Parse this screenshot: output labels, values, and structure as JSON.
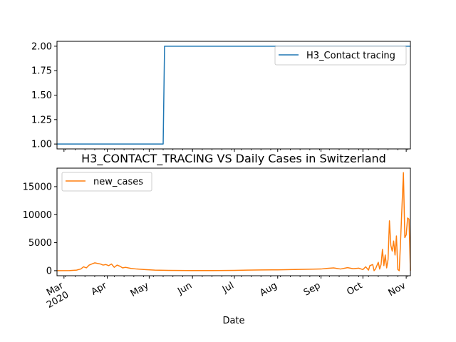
{
  "chart_data": [
    {
      "type": "line",
      "title": "",
      "xlabel": "",
      "ylabel": "",
      "ylim": [
        0.95,
        2.05
      ],
      "yticks": [
        "1.00",
        "1.25",
        "1.50",
        "1.75",
        "2.00"
      ],
      "legend_placement": "top-right",
      "grid": false,
      "series": [
        {
          "name": "H3_Contact tracing",
          "color": "#1f77b4",
          "x": [
            "2020-02-25",
            "2020-05-11",
            "2020-05-12",
            "2020-11-04"
          ],
          "values": [
            1,
            1,
            2,
            2
          ]
        }
      ]
    },
    {
      "type": "line",
      "title": "H3_CONTACT_TRACING VS Daily Cases in Switzerland",
      "xlabel": "Date",
      "ylabel": "",
      "ylim": [
        -900,
        18300
      ],
      "yticks": [
        "0",
        "5000",
        "10000",
        "15000"
      ],
      "legend_placement": "top-left",
      "grid": false,
      "xtick_labels": [
        {
          "date": "2020-03-01",
          "label": "Mar",
          "sublabel": "2020"
        },
        {
          "date": "2020-04-01",
          "label": "Apr"
        },
        {
          "date": "2020-05-01",
          "label": "May"
        },
        {
          "date": "2020-06-01",
          "label": "Jun"
        },
        {
          "date": "2020-07-01",
          "label": "Jul"
        },
        {
          "date": "2020-08-01",
          "label": "Aug"
        },
        {
          "date": "2020-09-01",
          "label": "Sep"
        },
        {
          "date": "2020-10-01",
          "label": "Oct"
        },
        {
          "date": "2020-11-01",
          "label": "Nov"
        }
      ],
      "series": [
        {
          "name": "new_cases",
          "color": "#ff7f0e",
          "x": [
            "2020-02-25",
            "2020-03-05",
            "2020-03-10",
            "2020-03-13",
            "2020-03-15",
            "2020-03-17",
            "2020-03-19",
            "2020-03-21",
            "2020-03-23",
            "2020-03-25",
            "2020-03-27",
            "2020-03-29",
            "2020-03-31",
            "2020-04-02",
            "2020-04-04",
            "2020-04-06",
            "2020-04-08",
            "2020-04-10",
            "2020-04-12",
            "2020-04-14",
            "2020-04-18",
            "2020-04-22",
            "2020-04-28",
            "2020-05-05",
            "2020-05-15",
            "2020-06-01",
            "2020-06-15",
            "2020-07-01",
            "2020-07-10",
            "2020-07-20",
            "2020-08-01",
            "2020-08-10",
            "2020-08-20",
            "2020-09-01",
            "2020-09-05",
            "2020-09-10",
            "2020-09-15",
            "2020-09-20",
            "2020-09-24",
            "2020-09-28",
            "2020-10-01",
            "2020-10-03",
            "2020-10-05",
            "2020-10-06",
            "2020-10-08",
            "2020-10-09",
            "2020-10-10",
            "2020-10-12",
            "2020-10-13",
            "2020-10-14",
            "2020-10-15",
            "2020-10-16",
            "2020-10-17",
            "2020-10-18",
            "2020-10-19",
            "2020-10-20",
            "2020-10-21",
            "2020-10-22",
            "2020-10-23",
            "2020-10-24",
            "2020-10-25",
            "2020-10-26",
            "2020-10-27",
            "2020-10-28",
            "2020-10-29",
            "2020-10-30",
            "2020-10-31",
            "2020-11-01",
            "2020-11-02",
            "2020-11-03",
            "2020-11-04"
          ],
          "values": [
            0,
            20,
            100,
            300,
            700,
            500,
            1000,
            1200,
            1400,
            1300,
            1200,
            1000,
            1100,
            900,
            1200,
            600,
            1000,
            800,
            500,
            600,
            400,
            300,
            200,
            100,
            50,
            30,
            20,
            60,
            100,
            130,
            150,
            200,
            250,
            300,
            400,
            500,
            300,
            550,
            350,
            450,
            200,
            700,
            100,
            900,
            1100,
            0,
            300,
            1500,
            300,
            1100,
            3800,
            900,
            2800,
            500,
            2000,
            8900,
            4500,
            3500,
            5300,
            2800,
            6200,
            200,
            0,
            5500,
            11600,
            17500,
            5900,
            6400,
            9400,
            9200,
            0
          ]
        }
      ]
    }
  ]
}
